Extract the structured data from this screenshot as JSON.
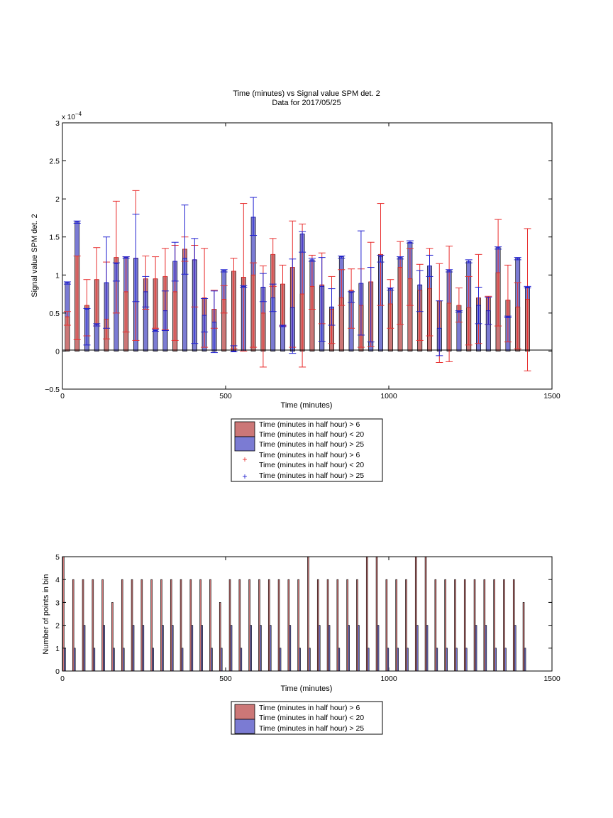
{
  "chart_data": [
    {
      "type": "bar",
      "title": "Time (minutes) vs Signal value SPM det. 2",
      "subtitle": "Data for 2017/05/25",
      "xlabel": "Time (minutes)",
      "ylabel": "Signal value SPM det. 2",
      "y_exponent_label": "x 10",
      "y_exponent": "−4",
      "xlim": [
        0,
        1500
      ],
      "ylim": [
        -0.5,
        3
      ],
      "xticks": [
        "0",
        "500",
        "1000",
        "1500"
      ],
      "yticks": [
        "−0.5",
        "0",
        "0.5",
        "1",
        "1.5",
        "2",
        "2.5",
        "3"
      ],
      "grid": false,
      "legend_position": "below",
      "legend": [
        "Time (minutes in half hour) > 6",
        "Time (minutes in half hour) < 20",
        "Time (minutes in half hour) > 25",
        "Time (minutes in half hour) > 6",
        "Time (minutes in half hour) < 20",
        "Time (minutes in half hour) > 25"
      ],
      "colors": {
        "red_bar": "#cc7777",
        "blue_bar": "#7b7bd3",
        "red_err": "#e83030",
        "blue_err": "#2020d0"
      },
      "x": [
        15,
        45,
        75,
        105,
        135,
        165,
        195,
        225,
        255,
        285,
        315,
        345,
        375,
        405,
        435,
        465,
        495,
        525,
        555,
        585,
        615,
        645,
        675,
        705,
        735,
        765,
        795,
        825,
        855,
        885,
        915,
        945,
        975,
        1005,
        1035,
        1065,
        1095,
        1125,
        1155,
        1185,
        1215,
        1245,
        1275,
        1305,
        1335,
        1365,
        1395,
        1425
      ],
      "series": [
        {
          "values": [
            0.45,
            1.25,
            0.6,
            0.94,
            0.42,
            1.23,
            0.78,
            1.22,
            0.95,
            0.95,
            0.98,
            0.78,
            1.34,
            1.2,
            0.7,
            0.55,
            0.68,
            1.05,
            0.97,
            1.0,
            0.5,
            1.27,
            0.88,
            1.1,
            0.75,
            0.85,
            0.87,
            0.55,
            0.7,
            0.8,
            0.6,
            0.91,
            1.27,
            0.62,
            1.1,
            0.95,
            0.8,
            0.82,
            0.66,
            0.63,
            0.6,
            0.57,
            0.7,
            0.7,
            1.03,
            0.67,
            0.58,
            0.68
          ],
          "err_low": [
            0.34,
            0.15,
            0.2,
            0.33,
            0.16,
            0.5,
            0.25,
            0.14,
            0.55,
            0.3,
            0.28,
            0.14,
            1.18,
            0.58,
            0.05,
            0.3,
            0.5,
            0.03,
            0.0,
            0.05,
            -0.21,
            0.85,
            0.33,
            0.05,
            -0.21,
            0.55,
            0.36,
            0.1,
            0.6,
            0.3,
            0.05,
            0.06,
            0.6,
            0.3,
            0.35,
            0.6,
            0.14,
            0.2,
            -0.15,
            -0.14,
            0.38,
            0.08,
            0.1,
            0.35,
            0.33,
            0.12,
            0.03,
            -0.26
          ],
          "err_high": [
            0.52,
            1.25,
            0.94,
            1.36,
            1.17,
            1.97,
            1.24,
            2.11,
            1.25,
            1.24,
            1.35,
            1.39,
            1.5,
            1.39,
            1.35,
            0.8,
            0.86,
            1.22,
            1.94,
            1.16,
            1.12,
            1.48,
            1.13,
            1.71,
            1.67,
            1.26,
            1.29,
            0.98,
            1.07,
            1.08,
            1.08,
            1.43,
            1.94,
            0.94,
            1.44,
            1.35,
            1.14,
            1.35,
            1.15,
            1.38,
            0.83,
            0.98,
            1.27,
            0.72,
            1.73,
            1.13,
            0.9,
            1.61
          ]
        },
        {
          "values": [
            0.9,
            1.7,
            0.55,
            0.35,
            0.9,
            1.15,
            1.23,
            1.22,
            0.78,
            0.27,
            0.53,
            1.18,
            1.22,
            1.2,
            0.47,
            0.38,
            1.06,
            0.0,
            0.85,
            1.76,
            0.84,
            0.7,
            0.33,
            0.57,
            1.54,
            1.2,
            0.85,
            0.58,
            1.24,
            0.77,
            0.89,
            0.12,
            1.24,
            0.82,
            1.23,
            1.43,
            0.87,
            1.12,
            0.3,
            1.06,
            0.52,
            1.18,
            0.6,
            0.53,
            1.36,
            0.45,
            1.22,
            0.84
          ],
          "err_low": [
            0.88,
            1.68,
            0.08,
            0.33,
            0.3,
            0.92,
            1.22,
            0.65,
            0.58,
            0.26,
            0.27,
            0.92,
            1.01,
            0.1,
            0.25,
            -0.02,
            1.04,
            -0.01,
            0.84,
            1.52,
            0.65,
            0.52,
            0.32,
            -0.03,
            1.3,
            1.18,
            0.13,
            0.34,
            1.22,
            0.64,
            0.21,
            0.12,
            1.17,
            0.8,
            1.21,
            1.42,
            0.52,
            0.98,
            -0.06,
            1.04,
            0.51,
            1.16,
            0.36,
            0.35,
            1.34,
            0.44,
            1.2,
            0.83
          ],
          "err_high": [
            0.91,
            1.71,
            0.56,
            0.36,
            1.5,
            1.16,
            1.24,
            1.8,
            0.98,
            0.28,
            0.79,
            1.43,
            1.92,
            1.48,
            0.69,
            0.79,
            1.07,
            0.07,
            0.86,
            2.02,
            1.02,
            0.88,
            0.34,
            1.21,
            1.57,
            1.22,
            1.23,
            0.82,
            1.25,
            0.78,
            1.58,
            1.1,
            1.26,
            0.83,
            1.24,
            1.45,
            1.06,
            1.26,
            0.66,
            1.07,
            0.53,
            1.2,
            0.84,
            0.71,
            1.37,
            0.46,
            1.23,
            0.85
          ]
        }
      ]
    },
    {
      "type": "bar",
      "xlabel": "Time (minutes)",
      "ylabel": "Number of points in bin",
      "xlim": [
        0,
        1500
      ],
      "ylim": [
        0,
        5
      ],
      "xticks": [
        "0",
        "500",
        "1000",
        "1500"
      ],
      "yticks": [
        "0",
        "1",
        "2",
        "3",
        "4",
        "5"
      ],
      "grid": false,
      "legend_position": "below",
      "legend": [
        "Time (minutes in half hour) > 6",
        "Time (minutes in half hour) < 20",
        "Time (minutes in half hour) > 25"
      ],
      "colors": {
        "red_bar": "#cc7777",
        "blue_bar": "#7b7bd3"
      },
      "x": [
        15,
        45,
        75,
        105,
        135,
        165,
        195,
        225,
        255,
        285,
        315,
        345,
        375,
        405,
        435,
        465,
        495,
        525,
        555,
        585,
        615,
        645,
        675,
        705,
        735,
        765,
        795,
        825,
        855,
        885,
        915,
        945,
        975,
        1005,
        1035,
        1065,
        1095,
        1125,
        1155,
        1185,
        1215,
        1245,
        1275,
        1305,
        1335,
        1365,
        1395,
        1425
      ],
      "series": [
        {
          "values": [
            5,
            4,
            4,
            4,
            4,
            3,
            4,
            4,
            4,
            4,
            4,
            4,
            4,
            4,
            4,
            4,
            3,
            4,
            4,
            4,
            4,
            4,
            4,
            4,
            4,
            5,
            4,
            4,
            4,
            4,
            4,
            5,
            5,
            4,
            4,
            4,
            5,
            5,
            4,
            4,
            4,
            4,
            4,
            4,
            4,
            4,
            4,
            3
          ]
        },
        {
          "values": [
            1,
            1,
            2,
            1,
            2,
            1,
            1,
            2,
            2,
            1,
            2,
            2,
            1,
            2,
            2,
            1,
            1,
            2,
            1,
            2,
            2,
            2,
            1,
            2,
            1,
            1,
            2,
            2,
            1,
            2,
            2,
            1,
            2,
            1,
            1,
            1,
            2,
            2,
            1,
            1,
            1,
            1,
            2,
            2,
            1,
            1,
            2,
            1
          ]
        }
      ]
    }
  ]
}
